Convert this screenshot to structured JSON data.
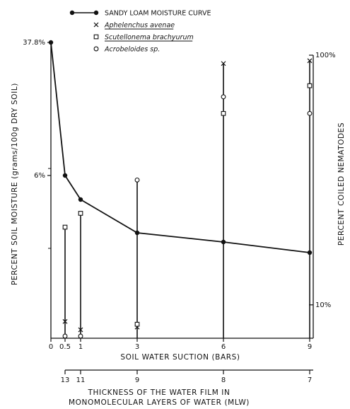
{
  "chart_data": {
    "type": "line",
    "x_axis": {
      "label": "SOIL WATER SUCTION (BARS)",
      "ticks": [
        {
          "value": 0,
          "label": "0"
        },
        {
          "value": 0.5,
          "label": "0.5"
        },
        {
          "value": 1,
          "label": "1"
        },
        {
          "value": 3,
          "label": "3"
        },
        {
          "value": 6,
          "label": "6"
        },
        {
          "value": 9,
          "label": "9"
        }
      ],
      "range": [
        0,
        9
      ]
    },
    "secondary_x_axis": {
      "label_line1": "THICKNESS OF THE WATER FILM IN",
      "label_line2": "MONOMOLECULAR LAYERS OF WATER (MLW)",
      "ticks": [
        {
          "suction": 0.5,
          "label": "13"
        },
        {
          "suction": 1,
          "label": "11"
        },
        {
          "suction": 3,
          "label": "9"
        },
        {
          "suction": 6,
          "label": "8"
        },
        {
          "suction": 9,
          "label": "7"
        }
      ]
    },
    "y_left": {
      "label": "PERCENT SOIL MOISTURE (grams/100g DRY SOIL)",
      "ticks": [
        {
          "value": 37.8,
          "label": "37.8%"
        },
        {
          "value": 6,
          "label": "6%"
        }
      ]
    },
    "y_right": {
      "label": "PERCENT COILED NEMATODES",
      "range": [
        0,
        100
      ],
      "ticks": [
        {
          "value": 100,
          "label": "100%"
        },
        {
          "value": 10,
          "label": "10%"
        }
      ]
    },
    "series": [
      {
        "name": "SANDY LOAM MOISTURE CURVE",
        "marker": "filled-circle",
        "axis": "left",
        "x": [
          0,
          0.5,
          1,
          3,
          6,
          9
        ],
        "y": [
          37.8,
          6,
          5,
          3.7,
          3.4,
          3.1
        ]
      },
      {
        "name": "Aphelenchus avenae",
        "marker": "x",
        "axis": "right",
        "x": [
          0.5,
          1,
          3,
          6,
          9
        ],
        "y": [
          4,
          1,
          2,
          97,
          98
        ]
      },
      {
        "name": "Scutellonema brachyurum",
        "marker": "square",
        "axis": "right",
        "x": [
          0.5,
          1,
          3,
          6,
          9
        ],
        "y": [
          38,
          43,
          3,
          79,
          89
        ]
      },
      {
        "name": "Acrobeloides sp.",
        "marker": "circle",
        "axis": "right",
        "x": [
          0.5,
          1,
          3,
          6,
          9
        ],
        "y": [
          0,
          0,
          55,
          85,
          79
        ]
      }
    ],
    "vertical_guides_at_x": [
      0.5,
      1,
      3,
      6,
      9
    ]
  }
}
